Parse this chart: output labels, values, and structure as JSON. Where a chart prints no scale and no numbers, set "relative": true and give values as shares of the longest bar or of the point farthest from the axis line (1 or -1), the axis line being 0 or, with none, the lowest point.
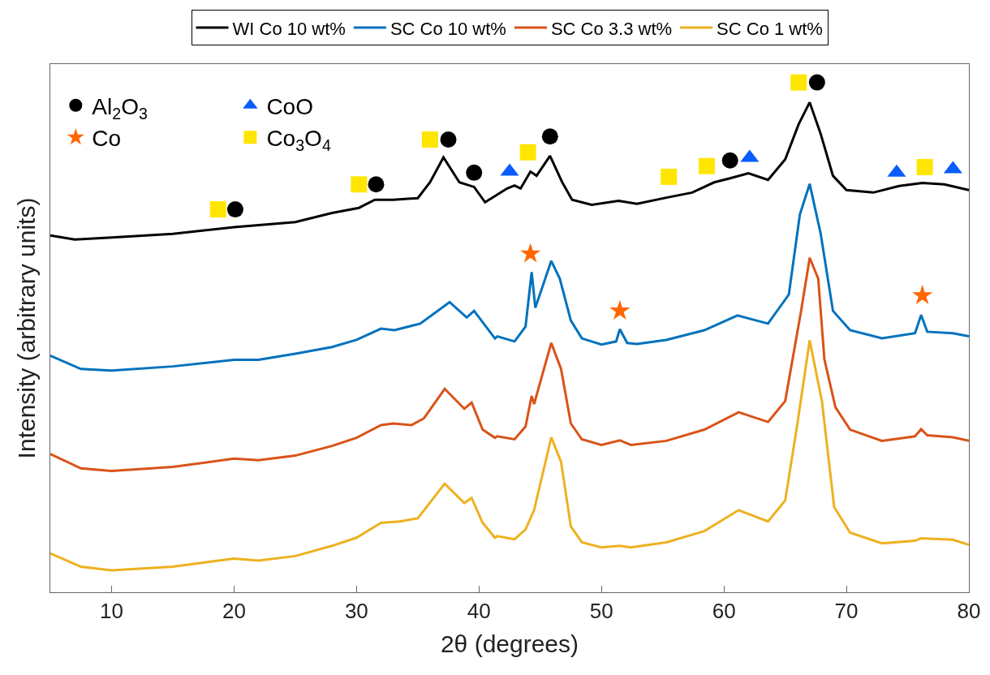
{
  "chart_data": {
    "type": "line",
    "relative": true,
    "xlabel": "2θ (degrees)",
    "ylabel": "Intensity (arbitrary units)",
    "xlim": [
      5,
      80
    ],
    "xticks": [
      10,
      20,
      30,
      40,
      50,
      60,
      70,
      80
    ],
    "legend": "top",
    "line_style": "solid",
    "series": [
      {
        "name": "WI Co 10 wt%",
        "color": "#000000",
        "x": [
          5,
          7,
          10,
          15,
          20,
          25,
          28,
          30.2,
          31.5,
          33,
          35,
          36,
          37.1,
          38.4,
          39.6,
          40.5,
          42.3,
          42.9,
          43.4,
          44.2,
          44.7,
          45.8,
          46.8,
          47.6,
          49.2,
          51.4,
          52.9,
          55.3,
          57.4,
          59.2,
          60.5,
          62.0,
          63.6,
          65.0,
          66.1,
          67.0,
          67.9,
          68.9,
          70.0,
          72.2,
          74.3,
          76.2,
          78.0,
          80
        ],
        "values": [
          0.7,
          0.692,
          0.696,
          0.703,
          0.716,
          0.726,
          0.744,
          0.754,
          0.77,
          0.77,
          0.773,
          0.804,
          0.853,
          0.804,
          0.795,
          0.765,
          0.792,
          0.798,
          0.792,
          0.825,
          0.817,
          0.856,
          0.804,
          0.77,
          0.76,
          0.768,
          0.762,
          0.774,
          0.784,
          0.804,
          0.812,
          0.822,
          0.809,
          0.849,
          0.918,
          0.961,
          0.899,
          0.817,
          0.789,
          0.784,
          0.797,
          0.803,
          0.8,
          0.789
        ]
      },
      {
        "name": "SC Co 10 wt%",
        "color": "#0072bd",
        "x": [
          5,
          7.5,
          10,
          15,
          20,
          22,
          25,
          28,
          30,
          32,
          33.1,
          35.2,
          37.6,
          39.0,
          39.6,
          41.3,
          41.5,
          42.9,
          43.8,
          44.3,
          44.6,
          45.9,
          46.6,
          47.5,
          48.4,
          50,
          51.2,
          51.5,
          52.1,
          52.9,
          55.3,
          58.4,
          61.1,
          63.6,
          65.3,
          66.2,
          67.0,
          67.9,
          68.9,
          70.3,
          72.9,
          75.6,
          76.1,
          76.6,
          78.7,
          80
        ],
        "values": [
          0.464,
          0.438,
          0.435,
          0.443,
          0.456,
          0.456,
          0.468,
          0.481,
          0.495,
          0.517,
          0.514,
          0.527,
          0.569,
          0.539,
          0.552,
          0.498,
          0.502,
          0.492,
          0.521,
          0.628,
          0.558,
          0.65,
          0.615,
          0.533,
          0.498,
          0.486,
          0.492,
          0.516,
          0.489,
          0.487,
          0.495,
          0.514,
          0.543,
          0.527,
          0.584,
          0.741,
          0.801,
          0.703,
          0.552,
          0.514,
          0.498,
          0.508,
          0.544,
          0.511,
          0.508,
          0.502
        ]
      },
      {
        "name": "SC Co 3.3 wt%",
        "color": "#d95319",
        "x": [
          5,
          7.5,
          10,
          15,
          20,
          22,
          25,
          28,
          30,
          32,
          33,
          34.5,
          35.5,
          37.2,
          38.8,
          39.4,
          40.3,
          41.3,
          41.5,
          42.9,
          43.8,
          44.3,
          44.5,
          45.9,
          46.7,
          47.5,
          48.4,
          50,
          51.5,
          52.4,
          55.3,
          58.4,
          61.2,
          63.6,
          65.0,
          66.3,
          67.0,
          67.7,
          68.2,
          69.1,
          70.3,
          72.9,
          75.6,
          76.1,
          76.6,
          78.7,
          80
        ],
        "values": [
          0.271,
          0.243,
          0.238,
          0.246,
          0.262,
          0.259,
          0.268,
          0.287,
          0.303,
          0.328,
          0.331,
          0.328,
          0.341,
          0.399,
          0.36,
          0.372,
          0.319,
          0.303,
          0.306,
          0.3,
          0.325,
          0.385,
          0.369,
          0.489,
          0.438,
          0.331,
          0.3,
          0.289,
          0.298,
          0.289,
          0.297,
          0.319,
          0.353,
          0.334,
          0.375,
          0.552,
          0.656,
          0.615,
          0.457,
          0.363,
          0.319,
          0.297,
          0.306,
          0.32,
          0.308,
          0.304,
          0.297
        ]
      },
      {
        "name": "SC Co 1 wt%",
        "color": "#edb120",
        "x": [
          5,
          7.5,
          10,
          15,
          20,
          22,
          25,
          28,
          30,
          32,
          33.5,
          35,
          37.2,
          38.8,
          39.4,
          40.3,
          41.3,
          41.5,
          42.9,
          43.8,
          44.5,
          45.9,
          46.7,
          47.5,
          48.4,
          50,
          51.5,
          52.4,
          55.3,
          58.4,
          61.2,
          63.6,
          65.0,
          66.0,
          67.0,
          68.0,
          69.0,
          70.3,
          72.9,
          75.6,
          76.1,
          78.7,
          80
        ],
        "values": [
          0.076,
          0.05,
          0.043,
          0.05,
          0.066,
          0.062,
          0.071,
          0.091,
          0.107,
          0.136,
          0.139,
          0.145,
          0.213,
          0.175,
          0.185,
          0.136,
          0.107,
          0.11,
          0.104,
          0.123,
          0.161,
          0.304,
          0.256,
          0.129,
          0.098,
          0.088,
          0.091,
          0.088,
          0.098,
          0.12,
          0.161,
          0.139,
          0.18,
          0.331,
          0.494,
          0.375,
          0.167,
          0.117,
          0.096,
          0.101,
          0.106,
          0.103,
          0.093
        ]
      },
      {
        "name": "Al$_{2}$O$_{3}$",
        "type": "scatter",
        "marker": "circle",
        "color": "#000000",
        "x": [
          20.1,
          31.6,
          37.5,
          39.6,
          45.8,
          60.5,
          67.6
        ],
        "values": [
          0.751,
          0.8,
          0.888,
          0.823,
          0.894,
          0.847,
          1.0
        ]
      },
      {
        "name": "CoO",
        "type": "scatter",
        "marker": "triangle",
        "color": "#0a5cff",
        "x": [
          42.5,
          62.1,
          74.1,
          78.7
        ],
        "values": [
          0.825,
          0.852,
          0.823,
          0.83
        ]
      },
      {
        "name": "Co",
        "type": "scatter",
        "marker": "star",
        "color": "#ff6600",
        "x": [
          44.2,
          51.5,
          76.2
        ],
        "values": [
          0.664,
          0.552,
          0.582
        ]
      },
      {
        "name": "Co$_{3}$O$_{4}$",
        "type": "scatter",
        "marker": "square",
        "color": "#ffe600",
        "x": [
          18.7,
          30.2,
          36.0,
          44.0,
          55.5,
          58.6,
          66.1,
          76.4
        ],
        "values": [
          0.751,
          0.8,
          0.888,
          0.863,
          0.815,
          0.836,
          1.0,
          0.834
        ]
      }
    ]
  }
}
